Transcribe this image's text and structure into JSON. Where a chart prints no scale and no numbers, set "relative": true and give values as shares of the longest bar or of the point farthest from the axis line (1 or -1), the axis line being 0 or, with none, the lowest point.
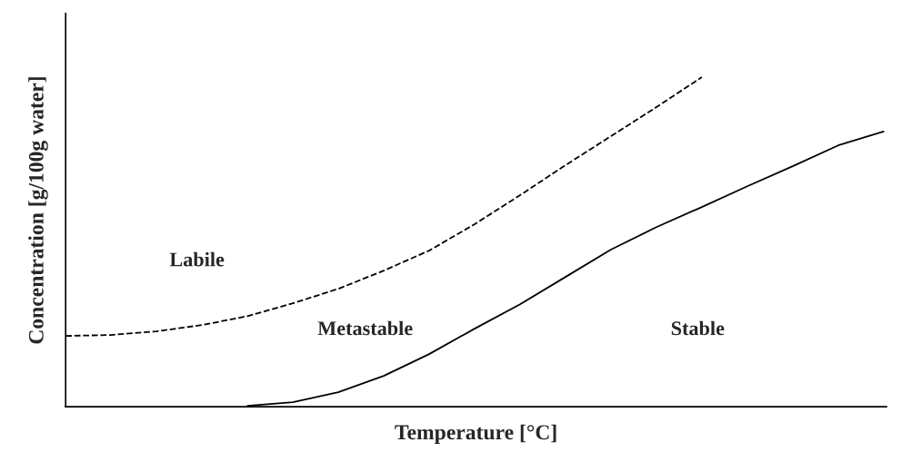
{
  "chart_data": {
    "type": "line",
    "relative": true,
    "xlabel": "Temperature [°C]",
    "ylabel": "Concentration [g/100g water]",
    "categories": [
      null,
      null,
      null,
      null,
      null,
      null,
      null,
      null,
      null,
      null,
      null,
      null,
      null,
      null,
      null,
      null,
      null,
      null,
      null
    ],
    "series": [
      {
        "color": "#000000",
        "line_style": "dashed",
        "values": [
          0.215,
          0.218,
          0.229,
          0.248,
          0.275,
          0.314,
          0.358,
          0.413,
          0.474,
          0.554,
          0.642,
          0.733,
          0.821,
          0.909,
          1,
          null,
          null,
          null,
          null
        ]
      },
      {
        "color": "#000000",
        "line_style": "solid",
        "values": [
          null,
          null,
          null,
          null,
          0.003,
          0.014,
          0.044,
          0.094,
          0.16,
          0.237,
          0.311,
          0.394,
          0.477,
          0.545,
          0.606,
          0.669,
          0.73,
          0.793,
          0.835
        ]
      }
    ],
    "annotations": [
      "Labile",
      "Metastable",
      "Stable"
    ],
    "legend": false,
    "grid": false,
    "tick_labels": false,
    "marker": "none"
  }
}
